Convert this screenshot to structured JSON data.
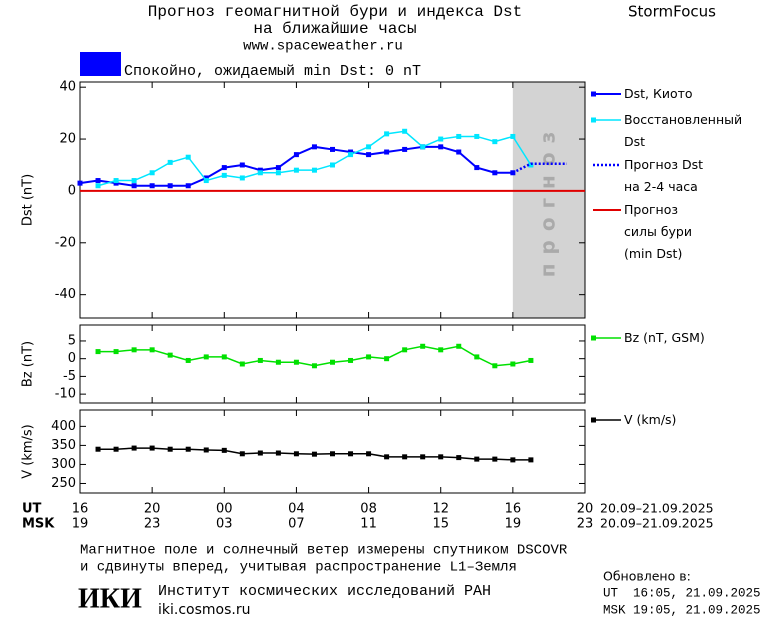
{
  "header": {
    "title_line1": "Прогноз геомагнитной бури и индекса Dst",
    "title_line2": "на ближайшие часы",
    "url": "www.spaceweather.ru",
    "brand": "StormFocus",
    "status": "Спокойно, ожидаемый min Dst: 0 nT",
    "status_color": "#0000ff"
  },
  "chart_data": [
    {
      "type": "line",
      "y_label": "Dst (nT)",
      "xlim": [
        0,
        28
      ],
      "ylim": [
        -49,
        42
      ],
      "yticks": [
        -40,
        -20,
        0,
        20,
        40
      ],
      "series": [
        {
          "name": "Dst, Киото",
          "color": "#0000ff",
          "marker": "square",
          "line_width": 2,
          "x": [
            0,
            1,
            2,
            3,
            4,
            5,
            6,
            7,
            8,
            9,
            10,
            11,
            12,
            13,
            14,
            15,
            16,
            17,
            18,
            19,
            20,
            21,
            22,
            23,
            24
          ],
          "values": [
            3,
            4,
            3,
            2,
            2,
            2,
            2,
            5,
            9,
            10,
            8,
            9,
            14,
            17,
            16,
            15,
            14,
            15,
            16,
            17,
            17,
            15,
            9,
            7,
            7
          ]
        },
        {
          "name": "Восстановленный\nDst",
          "color": "#00e6ff",
          "marker": "square",
          "line_width": 1.5,
          "x": [
            1,
            2,
            3,
            4,
            5,
            6,
            7,
            8,
            9,
            10,
            11,
            12,
            13,
            14,
            15,
            16,
            17,
            18,
            19,
            20,
            21,
            22,
            23,
            24,
            25
          ],
          "values": [
            2,
            4,
            4,
            7,
            11,
            13,
            4,
            6,
            5,
            7,
            7,
            8,
            8,
            10,
            14,
            17,
            22,
            23,
            17,
            20,
            21,
            21,
            19,
            21,
            10
          ]
        },
        {
          "name": "Прогноз Dst\nна 2-4 часа",
          "color": "#0000ff",
          "dash": "dotted",
          "line_width": 2.5,
          "x": [
            24,
            25,
            27
          ],
          "values": [
            7,
            10.5,
            10.5
          ]
        }
      ],
      "hline": {
        "name": "Прогноз\nсилы бури\n(min Dst)",
        "value": 0,
        "color": "#e00000"
      },
      "forecast_region": {
        "label": "прогноз",
        "x": [
          24,
          28
        ],
        "color": "#d3d3d3"
      }
    },
    {
      "type": "line",
      "y_label": "Bz (nT)",
      "xlim": [
        0,
        28
      ],
      "ylim": [
        -12.5,
        9.5
      ],
      "yticks": [
        -10,
        -5,
        0,
        5
      ],
      "series": [
        {
          "name": "Bz (nT, GSM)",
          "color": "#00e000",
          "marker": "square",
          "line_width": 1.5,
          "x": [
            1,
            2,
            3,
            4,
            5,
            6,
            7,
            8,
            9,
            10,
            11,
            12,
            13,
            14,
            15,
            16,
            17,
            18,
            19,
            20,
            21,
            22,
            23,
            24,
            25
          ],
          "values": [
            2,
            2,
            2.5,
            2.5,
            1,
            -0.5,
            0.5,
            0.5,
            -1.5,
            -0.5,
            -1,
            -1,
            -2,
            -1,
            -0.5,
            0.5,
            0,
            2.5,
            3.5,
            2.5,
            3.5,
            0.5,
            -2,
            -1.5,
            -0.5
          ]
        }
      ]
    },
    {
      "type": "line",
      "y_label": "V (km/s)",
      "xlim": [
        0,
        28
      ],
      "ylim": [
        225,
        443
      ],
      "yticks": [
        250,
        300,
        350,
        400
      ],
      "series": [
        {
          "name": "V (km/s)",
          "color": "#000000",
          "marker": "square",
          "line_width": 1.5,
          "x": [
            1,
            2,
            3,
            4,
            5,
            6,
            7,
            8,
            9,
            10,
            11,
            12,
            13,
            14,
            15,
            16,
            17,
            18,
            19,
            20,
            21,
            22,
            23,
            24,
            25
          ],
          "values": [
            340,
            340,
            343,
            343,
            340,
            340,
            338,
            337,
            328,
            330,
            330,
            328,
            327,
            328,
            328,
            328,
            320,
            320,
            320,
            320,
            318,
            314,
            314,
            312,
            312
          ]
        }
      ]
    }
  ],
  "time_axis": {
    "ut_label": "UT",
    "msk_label": "MSK",
    "ut_ticks": [
      {
        "value": 0,
        "label": "16"
      },
      {
        "value": 4,
        "label": "20"
      },
      {
        "value": 8,
        "label": "00"
      },
      {
        "value": 12,
        "label": "04"
      },
      {
        "value": 16,
        "label": "08"
      },
      {
        "value": 20,
        "label": "12"
      },
      {
        "value": 24,
        "label": "16"
      },
      {
        "value": 28,
        "label": "20"
      }
    ],
    "msk_ticks": [
      {
        "value": 0,
        "label": "19"
      },
      {
        "value": 4,
        "label": "23"
      },
      {
        "value": 8,
        "label": "03"
      },
      {
        "value": 12,
        "label": "07"
      },
      {
        "value": 16,
        "label": "11"
      },
      {
        "value": 20,
        "label": "15"
      },
      {
        "value": 24,
        "label": "19"
      },
      {
        "value": 28,
        "label": "23"
      }
    ],
    "ut_dates": "20.09–21.09.2025",
    "msk_dates": "20.09–21.09.2025"
  },
  "footer": {
    "note_line1": "Магнитное поле и солнечный ветер измерены спутником DSCOVR",
    "note_line2": "и сдвинуты вперед, учитывая распространение L1–Земля",
    "updated_label": "Обновлено в:",
    "updated_ut": "UT  16:05, 21.09.2025",
    "updated_msk": "MSK 19:05, 21.09.2025",
    "logo": "ИКИ",
    "institute": "Институт космических исследований РАН",
    "institute_url": "iki.cosmos.ru"
  }
}
